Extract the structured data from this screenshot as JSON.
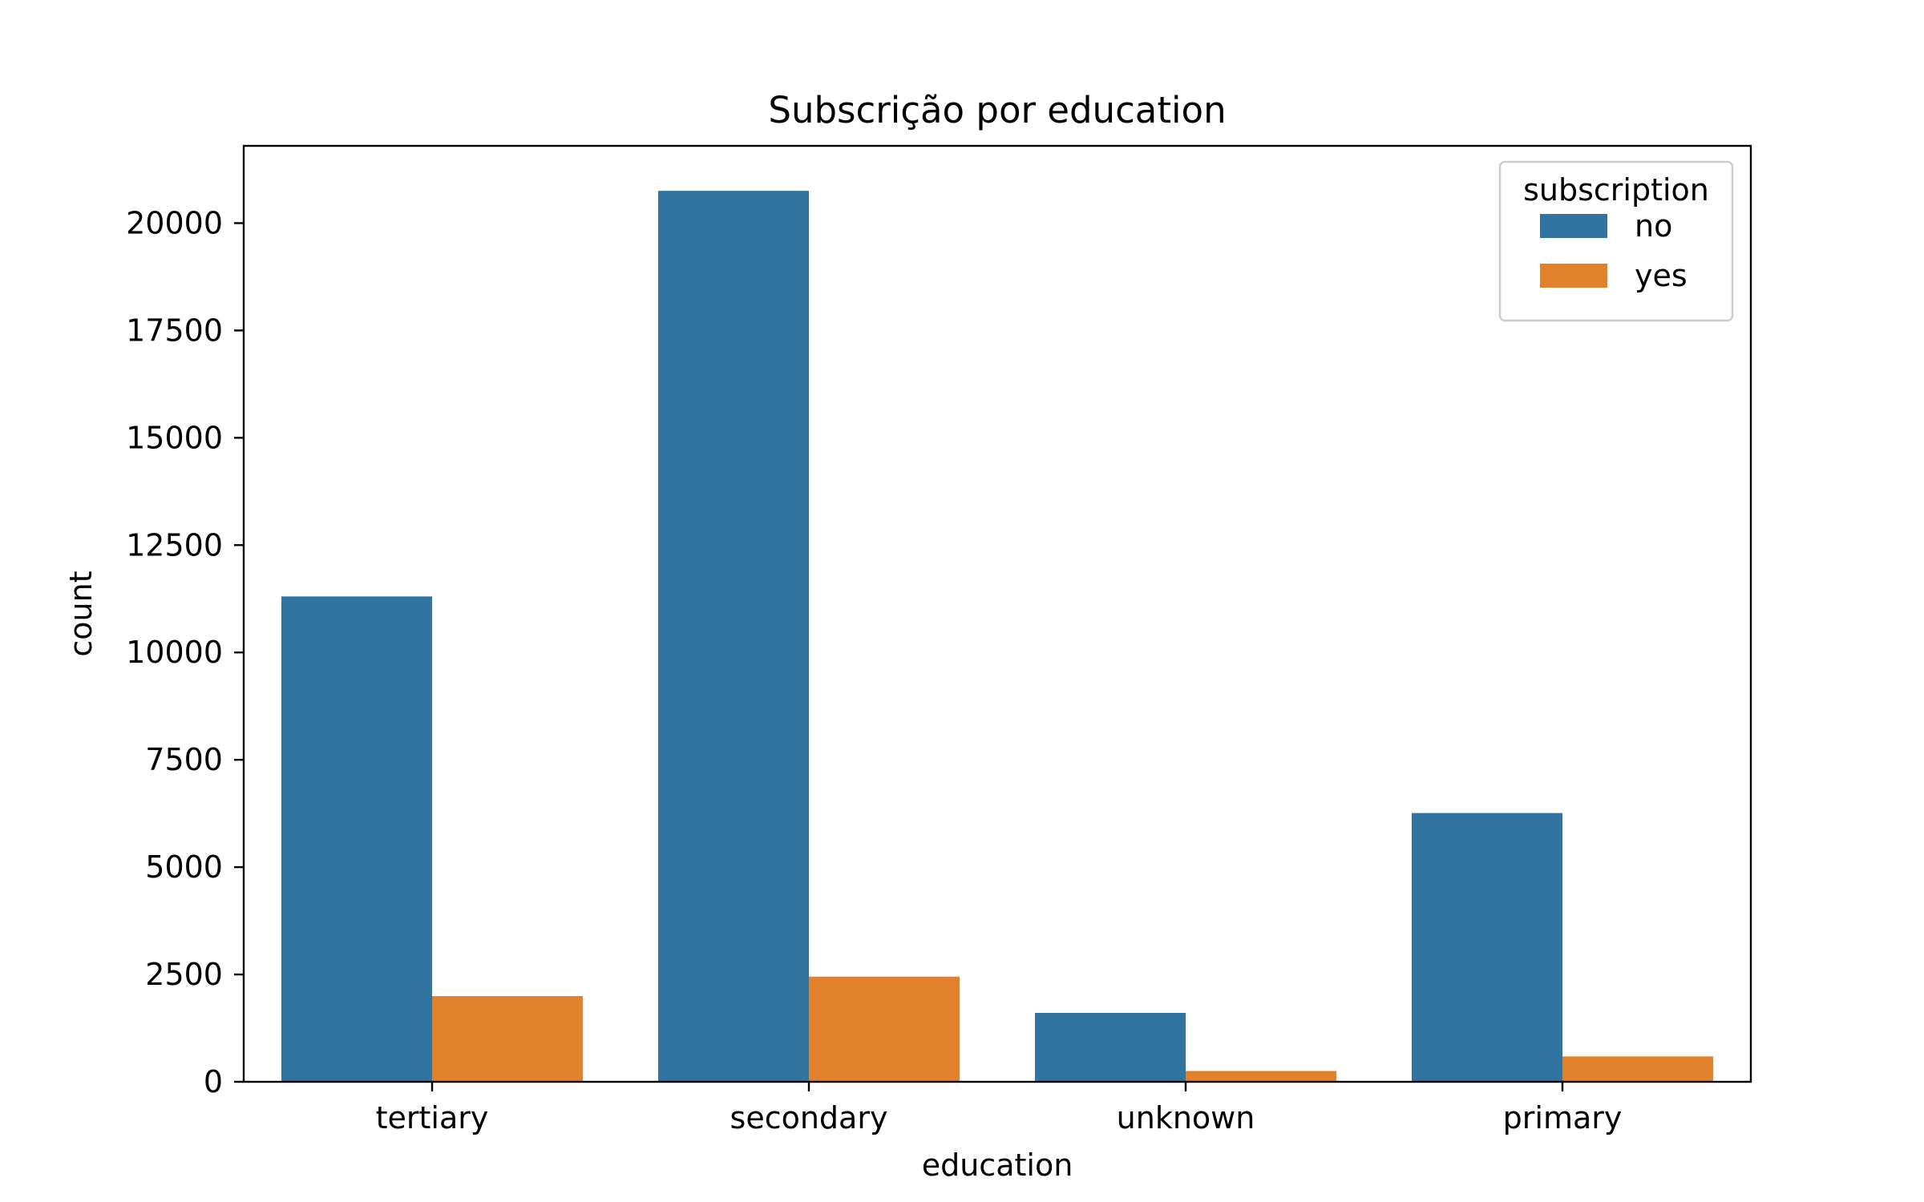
{
  "chart_data": {
    "type": "bar",
    "title": "Subscrição por education",
    "xlabel": "education",
    "ylabel": "count",
    "categories": [
      "tertiary",
      "secondary",
      "unknown",
      "primary"
    ],
    "series": [
      {
        "name": "no",
        "values": [
          11305,
          20752,
          1605,
          6260
        ],
        "color": "#3274a1"
      },
      {
        "name": "yes",
        "values": [
          1996,
          2450,
          252,
          591
        ],
        "color": "#e1812c"
      }
    ],
    "ylim": [
      0,
      21800
    ],
    "yticks": [
      0,
      2500,
      5000,
      7500,
      10000,
      12500,
      15000,
      17500,
      20000
    ],
    "ytick_labels": [
      "0",
      "2500",
      "5000",
      "7500",
      "10000",
      "12500",
      "15000",
      "17500",
      "20000"
    ],
    "legend": {
      "title": "subscription",
      "placement": "top-right"
    },
    "grid": false
  }
}
